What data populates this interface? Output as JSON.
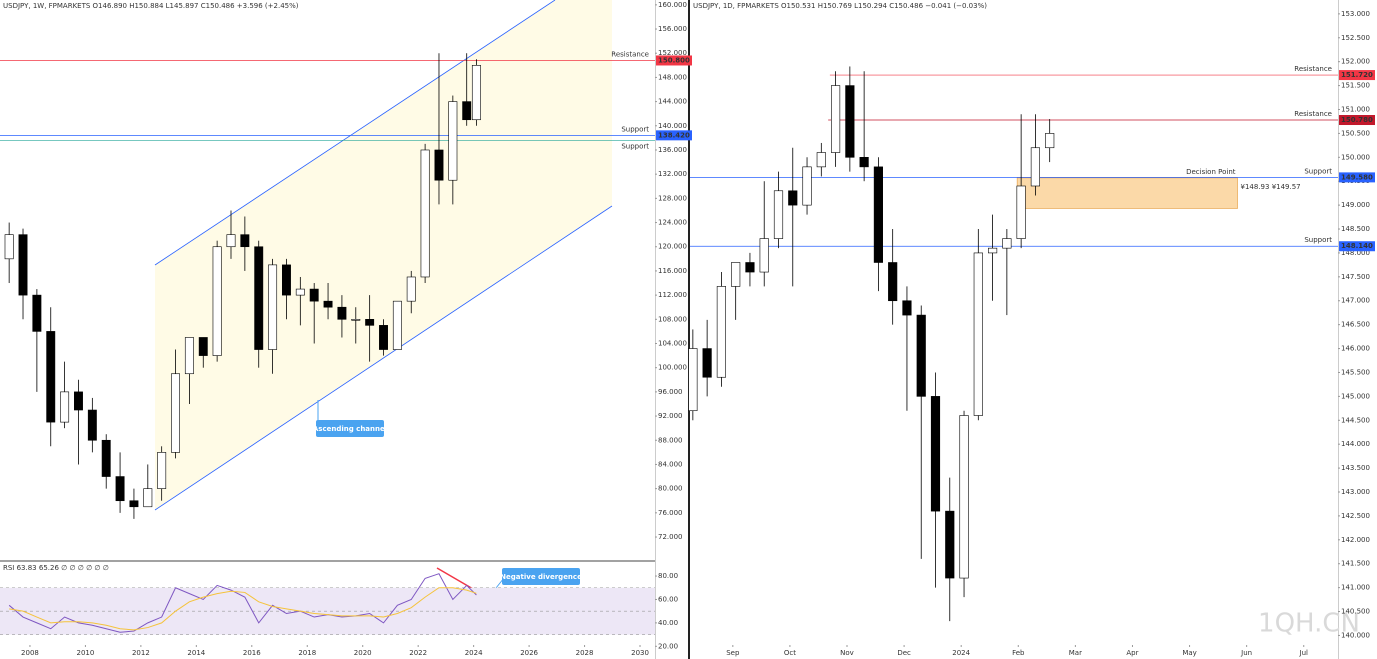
{
  "chart_data": [
    {
      "type": "candlestick",
      "title": "USDJPY, 1W, FPMARKETS  O146.890 H150.884 L145.897 C150.486 +3.596 (+2.45%)",
      "x": [
        2007.25,
        2007.75,
        2008.25,
        2008.75,
        2009.25,
        2009.75,
        2010.25,
        2010.75,
        2011.25,
        2011.75,
        2012.25,
        2012.75,
        2013.25,
        2013.75,
        2014.25,
        2014.75,
        2015.25,
        2015.75,
        2016.25,
        2016.75,
        2017.25,
        2017.75,
        2018.25,
        2018.75,
        2019.25,
        2019.75,
        2020.25,
        2020.75,
        2021.25,
        2021.75,
        2022.25,
        2022.75,
        2023.25,
        2023.75,
        2024.1
      ],
      "open": [
        118,
        122,
        112,
        106,
        91,
        96,
        93,
        88,
        82,
        78,
        77,
        80,
        86,
        99,
        105,
        102,
        120,
        122,
        120,
        103,
        117,
        112,
        113,
        111,
        110,
        108,
        108,
        107,
        103,
        111,
        115,
        136,
        131,
        144,
        141
      ],
      "high": [
        124,
        123,
        113,
        110,
        101,
        98,
        95,
        89,
        86,
        80,
        84,
        87,
        103,
        105,
        105,
        121,
        126,
        125,
        121,
        118,
        118,
        115,
        114,
        114,
        112,
        110,
        112,
        108,
        111,
        116,
        137,
        152,
        145,
        152,
        151
      ],
      "low": [
        114,
        108,
        96,
        87,
        90,
        84,
        86,
        80,
        76,
        75,
        77,
        78,
        85,
        94,
        100,
        101,
        118,
        116,
        100,
        99,
        108,
        107,
        104,
        108,
        105,
        104,
        101,
        102,
        103,
        109,
        114,
        127,
        127,
        140,
        140
      ],
      "close": [
        122,
        112,
        106,
        91,
        96,
        93,
        88,
        82,
        78,
        77,
        80,
        86,
        99,
        105,
        102,
        120,
        122,
        120,
        103,
        117,
        112,
        113,
        111,
        110,
        108,
        108,
        107,
        103,
        111,
        115,
        136,
        131,
        144,
        141,
        150
      ],
      "up_color": "#ffffff",
      "down_color": "#000000",
      "xlim": [
        2006.92,
        2030.54
      ],
      "xticks": [
        2008,
        2010,
        2012,
        2014,
        2016,
        2018,
        2020,
        2022,
        2024,
        2026,
        2028,
        2030
      ],
      "ylim": [
        68.2,
        160.8
      ],
      "yticks": [
        {
          "value": 160,
          "label": "160.000"
        },
        {
          "value": 156,
          "label": "156.000"
        },
        {
          "value": 152,
          "label": "152.000"
        },
        {
          "value": 148,
          "label": "148.000"
        },
        {
          "value": 144,
          "label": "144.000"
        },
        {
          "value": 140,
          "label": "140.000"
        },
        {
          "value": 136,
          "label": "136.000"
        },
        {
          "value": 132,
          "label": "132.000"
        },
        {
          "value": 128,
          "label": "128.000"
        },
        {
          "value": 124,
          "label": "124.000"
        },
        {
          "value": 120,
          "label": "120.000"
        },
        {
          "value": 116,
          "label": "116.000"
        },
        {
          "value": 112,
          "label": "112.000"
        },
        {
          "value": 108,
          "label": "108.000"
        },
        {
          "value": 104,
          "label": "104.000"
        },
        {
          "value": 100,
          "label": "100.000"
        },
        {
          "value": 96,
          "label": "96.000"
        },
        {
          "value": 92,
          "label": "92.000"
        },
        {
          "value": 88,
          "label": "88.000"
        },
        {
          "value": 84,
          "label": "84.000"
        },
        {
          "value": 80,
          "label": "80.000"
        },
        {
          "value": 76,
          "label": "76.000"
        },
        {
          "value": 72,
          "label": "72.000"
        }
      ],
      "levels": [
        {
          "value": 150.8,
          "label": "150.800",
          "text": "Resistance",
          "color": "#f23645"
        },
        {
          "value": 138.42,
          "label": "138.420",
          "text": "Support",
          "color": "#2962ff"
        },
        {
          "value": 137.6,
          "text": "Support",
          "color": "#26a69a"
        }
      ],
      "annotations": [
        "Ascending channel"
      ]
    },
    {
      "type": "line",
      "title": "RSI 63.83 65.26 ∅ ∅ ∅ ∅ ∅ ∅",
      "x": [
        2007.25,
        2007.75,
        2008.25,
        2008.75,
        2009.25,
        2009.75,
        2010.25,
        2010.75,
        2011.25,
        2011.75,
        2012.25,
        2012.75,
        2013.25,
        2013.75,
        2014.25,
        2014.75,
        2015.25,
        2015.75,
        2016.25,
        2016.75,
        2017.25,
        2017.75,
        2018.25,
        2018.75,
        2019.25,
        2019.75,
        2020.25,
        2020.75,
        2021.25,
        2021.75,
        2022.25,
        2022.75,
        2023.25,
        2023.75,
        2024.1
      ],
      "series": [
        {
          "name": "RSI",
          "color": "#7e57c2",
          "values": [
            55,
            45,
            40,
            35,
            45,
            40,
            38,
            35,
            32,
            33,
            40,
            45,
            70,
            65,
            60,
            72,
            68,
            62,
            40,
            55,
            48,
            50,
            45,
            47,
            45,
            46,
            48,
            40,
            55,
            60,
            78,
            82,
            60,
            72,
            63.83
          ]
        },
        {
          "name": "MA",
          "color": "#f5c33b",
          "values": [
            52,
            50,
            45,
            40,
            41,
            41,
            40,
            38,
            35,
            34,
            36,
            40,
            50,
            58,
            62,
            65,
            67,
            66,
            58,
            54,
            52,
            50,
            48,
            47,
            46,
            46,
            46,
            45,
            48,
            53,
            62,
            70,
            70,
            68,
            65.26
          ]
        }
      ],
      "band": [
        30,
        70
      ],
      "midline": 50,
      "band_color": "#ede7f6",
      "xlim": [
        2006.92,
        2030.54
      ],
      "ylim": [
        10,
        92
      ],
      "yticks": [
        {
          "value": 80,
          "label": "80.00"
        },
        {
          "value": 60,
          "label": "60.00"
        },
        {
          "value": 40,
          "label": "40.00"
        },
        {
          "value": 20,
          "label": "20.00"
        }
      ],
      "annotations": [
        "Negative divergence"
      ]
    },
    {
      "type": "candlestick",
      "title": "USDJPY, 1D, FPMARKETS  O150.531 H150.769 L150.294 C150.486 −0.041 (−0.03%)",
      "x": [
        0.3,
        0.55,
        0.8,
        1.05,
        1.3,
        1.55,
        1.8,
        2.05,
        2.3,
        2.55,
        2.8,
        3.05,
        3.3,
        3.55,
        3.8,
        4.05,
        4.3,
        4.55,
        4.8,
        5.05,
        5.3,
        5.55,
        5.8,
        6.05,
        6.3,
        6.55
      ],
      "open": [
        144.7,
        146.0,
        145.4,
        147.3,
        147.8,
        147.6,
        148.3,
        149.3,
        149.0,
        149.8,
        150.1,
        151.5,
        150.0,
        149.8,
        147.8,
        147.0,
        146.7,
        145.0,
        142.6,
        141.2,
        144.6,
        148.0,
        148.1,
        148.3,
        149.4,
        150.2
      ],
      "high": [
        146.4,
        146.6,
        147.6,
        147.8,
        148.0,
        149.5,
        149.7,
        150.2,
        150.0,
        150.3,
        151.8,
        151.9,
        151.8,
        150.0,
        148.5,
        147.3,
        146.9,
        145.5,
        143.3,
        144.7,
        148.5,
        148.8,
        148.5,
        150.9,
        150.9,
        150.8
      ],
      "low": [
        144.5,
        145.0,
        145.2,
        146.6,
        147.3,
        147.3,
        148.1,
        147.3,
        148.8,
        149.6,
        149.8,
        149.7,
        149.5,
        147.2,
        146.5,
        144.7,
        141.6,
        141.0,
        140.3,
        140.8,
        144.5,
        147.0,
        146.7,
        148.1,
        149.2,
        149.9
      ],
      "close": [
        146.0,
        145.4,
        147.3,
        147.8,
        147.6,
        148.3,
        149.3,
        149.0,
        149.8,
        150.1,
        151.5,
        150.0,
        149.8,
        147.8,
        147.0,
        146.7,
        145.0,
        142.6,
        141.2,
        144.6,
        148.0,
        148.1,
        148.3,
        149.4,
        150.2,
        150.5
      ],
      "up_color": "#ffffff",
      "down_color": "#000000",
      "xlim": [
        0.25,
        11.6
      ],
      "xticks": [
        {
          "value": 1,
          "label": "Sep"
        },
        {
          "value": 2,
          "label": "Oct"
        },
        {
          "value": 3,
          "label": "Nov"
        },
        {
          "value": 4,
          "label": "Dec"
        },
        {
          "value": 5,
          "label": "2024"
        },
        {
          "value": 6,
          "label": "Feb"
        },
        {
          "value": 7,
          "label": "Mar"
        },
        {
          "value": 8,
          "label": "Apr"
        },
        {
          "value": 9,
          "label": "May"
        },
        {
          "value": 10,
          "label": "Jun"
        },
        {
          "value": 11,
          "label": "Jul"
        }
      ],
      "ylim": [
        139.8,
        153.29
      ],
      "yticks": [
        {
          "value": 153,
          "label": "153.000"
        },
        {
          "value": 152.5,
          "label": "152.500"
        },
        {
          "value": 152,
          "label": "152.000"
        },
        {
          "value": 151.5,
          "label": "151.500"
        },
        {
          "value": 151,
          "label": "151.000"
        },
        {
          "value": 150.5,
          "label": "150.500"
        },
        {
          "value": 150,
          "label": "150.000"
        },
        {
          "value": 149.5,
          "label": "149.500"
        },
        {
          "value": 149,
          "label": "149.000"
        },
        {
          "value": 148.5,
          "label": "148.500"
        },
        {
          "value": 148,
          "label": "148.000"
        },
        {
          "value": 147.5,
          "label": "147.500"
        },
        {
          "value": 147,
          "label": "147.000"
        },
        {
          "value": 146.5,
          "label": "146.500"
        },
        {
          "value": 146,
          "label": "146.000"
        },
        {
          "value": 145.5,
          "label": "145.500"
        },
        {
          "value": 145,
          "label": "145.000"
        },
        {
          "value": 144.5,
          "label": "144.500"
        },
        {
          "value": 144,
          "label": "144.000"
        },
        {
          "value": 143.5,
          "label": "143.500"
        },
        {
          "value": 143,
          "label": "143.000"
        },
        {
          "value": 142.5,
          "label": "142.500"
        },
        {
          "value": 142,
          "label": "142.000"
        },
        {
          "value": 141.5,
          "label": "141.500"
        },
        {
          "value": 141,
          "label": "141.000"
        },
        {
          "value": 140.5,
          "label": "140.500"
        },
        {
          "value": 140,
          "label": "140.000"
        }
      ],
      "levels": [
        {
          "value": 151.72,
          "label": "151.720",
          "text": "Resistance",
          "color": "#f23645",
          "start": 2.7
        },
        {
          "value": 150.78,
          "label": "150.780",
          "text": "Resistance",
          "color": "#c2182b",
          "start": 2.67
        },
        {
          "value": 149.58,
          "label": "149.580",
          "text": "Support",
          "color": "#2962ff"
        },
        {
          "value": 148.14,
          "label": "148.140",
          "text": "Support",
          "color": "#2962ff"
        }
      ],
      "zone": {
        "title": "Decision Point",
        "label": "¥148.93 ¥149.57",
        "from": 148.93,
        "to": 149.57,
        "x": [
          5.98,
          9.84
        ],
        "color": "#fbd9a8"
      }
    }
  ],
  "watermark": "1QH.CN"
}
